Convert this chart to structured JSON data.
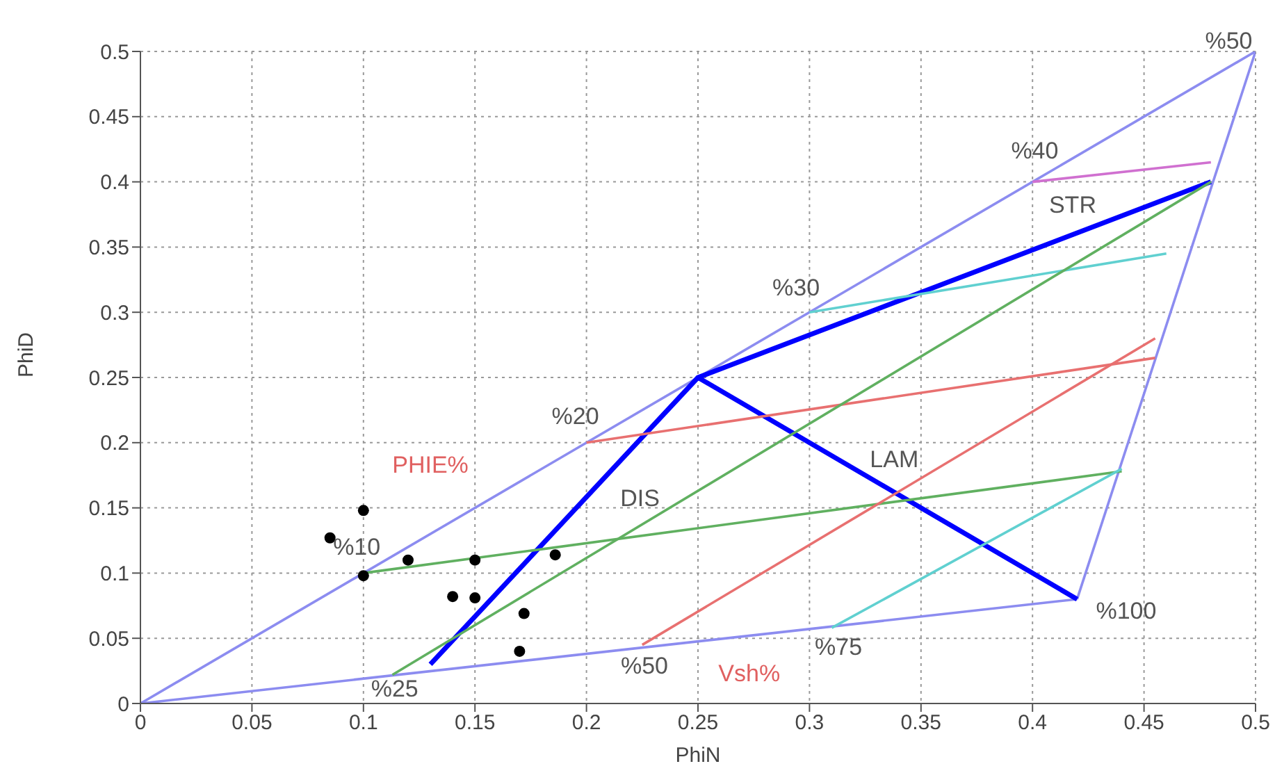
{
  "chart_data": {
    "type": "line",
    "xlabel": "PhiN",
    "ylabel": "PhiD",
    "xlim": [
      0,
      0.5
    ],
    "ylim": [
      0,
      0.5
    ],
    "xticks": [
      0,
      0.05,
      0.1,
      0.15,
      0.2,
      0.25,
      0.3,
      0.35,
      0.4,
      0.45,
      0.5
    ],
    "yticks": [
      0,
      0.05,
      0.1,
      0.15,
      0.2,
      0.25,
      0.3,
      0.35,
      0.4,
      0.45,
      0.5
    ],
    "grid": true,
    "line_style": "solid",
    "marker": "none",
    "series": [
      {
        "color": "#8c8cf0",
        "x": [
          0,
          0.5
        ],
        "values": [
          0,
          0.5
        ]
      },
      {
        "color": "#8c8cf0",
        "x": [
          0.42,
          0.5
        ],
        "values": [
          0.08,
          0.5
        ]
      },
      {
        "color": "#8c8cf0",
        "x": [
          0,
          0.42
        ],
        "values": [
          0,
          0.08
        ]
      },
      {
        "color": "#0000ff",
        "x": [
          0.13,
          0.25,
          0.48
        ],
        "values": [
          0.03,
          0.25,
          0.4
        ]
      },
      {
        "color": "#0000ff",
        "x": [
          0.25,
          0.42
        ],
        "values": [
          0.25,
          0.08
        ]
      },
      {
        "color": "#d070d0",
        "x": [
          0.4,
          0.48
        ],
        "values": [
          0.4,
          0.415
        ]
      },
      {
        "color": "#60d0d0",
        "x": [
          0.3,
          0.46
        ],
        "values": [
          0.3,
          0.345
        ]
      },
      {
        "color": "#e87070",
        "x": [
          0.2,
          0.455
        ],
        "values": [
          0.2,
          0.265
        ]
      },
      {
        "color": "#60b060",
        "x": [
          0.1,
          0.44
        ],
        "values": [
          0.1,
          0.178
        ]
      },
      {
        "color": "#60b060",
        "x": [
          0.113,
          0.48
        ],
        "values": [
          0.022,
          0.4
        ]
      },
      {
        "color": "#e87070",
        "x": [
          0.225,
          0.455
        ],
        "values": [
          0.045,
          0.28
        ]
      },
      {
        "color": "#60d0d0",
        "x": [
          0.31,
          0.44
        ],
        "values": [
          0.058,
          0.18
        ]
      },
      {
        "type": "scatter",
        "color": "#000000",
        "marker": "circle",
        "x": [
          0.085,
          0.1,
          0.1,
          0.12,
          0.15,
          0.14,
          0.15,
          0.172,
          0.186,
          0.17
        ],
        "values": [
          0.127,
          0.148,
          0.098,
          0.11,
          0.11,
          0.082,
          0.081,
          0.069,
          0.114,
          0.04
        ]
      }
    ],
    "annotations": [
      "%50",
      "%40",
      "STR",
      "%30",
      "%20",
      "PHIE%",
      "DIS",
      "LAM",
      "%10",
      "%100",
      "%75",
      "%50",
      "Vsh%",
      "%25"
    ]
  }
}
